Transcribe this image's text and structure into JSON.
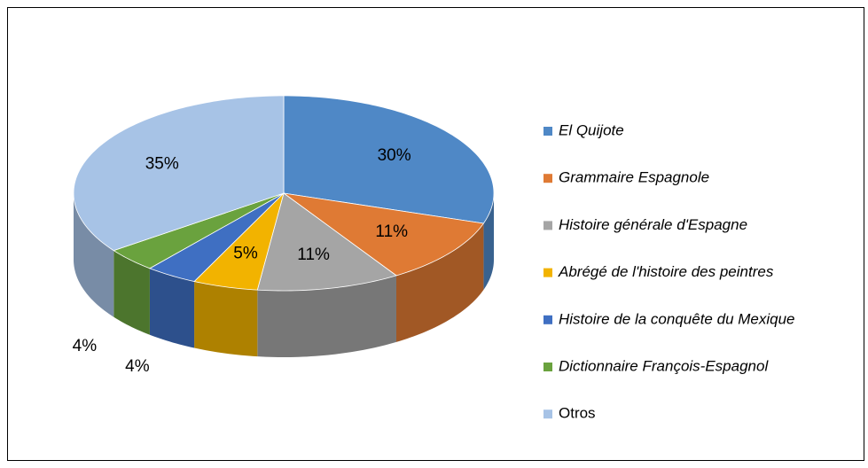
{
  "chart_data": {
    "type": "pie",
    "categories": [
      "El Quijote",
      "Grammaire Espagnole",
      "Histoire générale d'Espagne",
      "Abrégé de l'histoire des peintres",
      "Histoire de la conquête du Mexique",
      "Dictionnaire François-Espagnol",
      "Otros"
    ],
    "values": [
      30,
      11,
      11,
      5,
      4,
      4,
      35
    ],
    "value_labels": [
      "30%",
      "11%",
      "11%",
      "5%",
      "4%",
      "4%",
      "35%"
    ],
    "colors": [
      "#4f88c6",
      "#df7a34",
      "#a5a5a5",
      "#f2b300",
      "#3f6fc2",
      "#6aa23e",
      "#a7c3e6"
    ],
    "legend": "right"
  }
}
